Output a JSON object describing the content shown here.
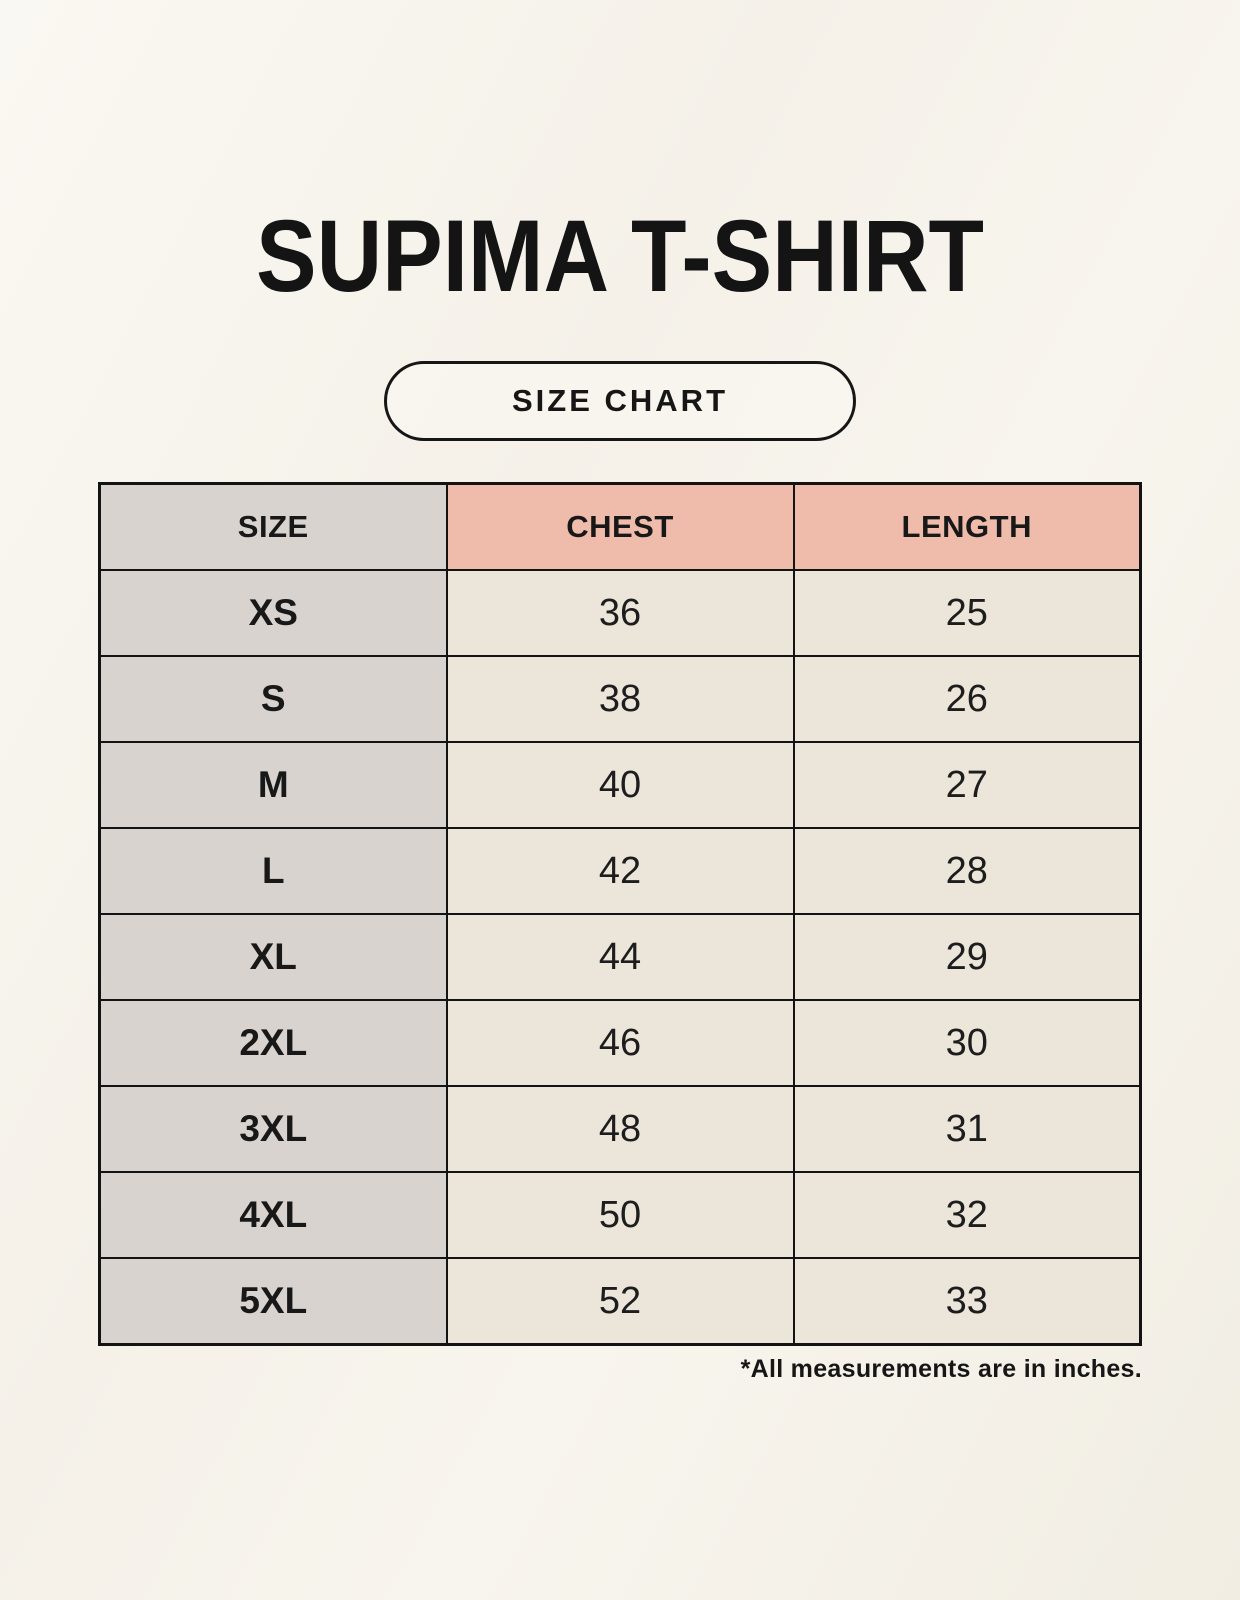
{
  "page": {
    "title": "SUPIMA T-SHIRT",
    "button_label": "SIZE CHART",
    "footnote": "*All measurements are in inches."
  },
  "chart_data": {
    "type": "table",
    "title": "SUPIMA T-SHIRT",
    "columns": [
      "SIZE",
      "CHEST",
      "LENGTH"
    ],
    "rows": [
      [
        "XS",
        "36",
        "25"
      ],
      [
        "S",
        "38",
        "26"
      ],
      [
        "M",
        "40",
        "27"
      ],
      [
        "L",
        "42",
        "28"
      ],
      [
        "XL",
        "44",
        "29"
      ],
      [
        "2XL",
        "46",
        "30"
      ],
      [
        "3XL",
        "48",
        "31"
      ],
      [
        "4XL",
        "50",
        "32"
      ],
      [
        "5XL",
        "52",
        "33"
      ]
    ],
    "units_note": "*All measurements are in inches."
  },
  "colors": {
    "page_background": "#f6f3ec",
    "header_accent_pink": "#efbcab",
    "size_column_gray": "#d9d3cf",
    "value_cell_beige": "#ebe5da",
    "table_border": "#131313",
    "text": "#1a1a1a"
  }
}
